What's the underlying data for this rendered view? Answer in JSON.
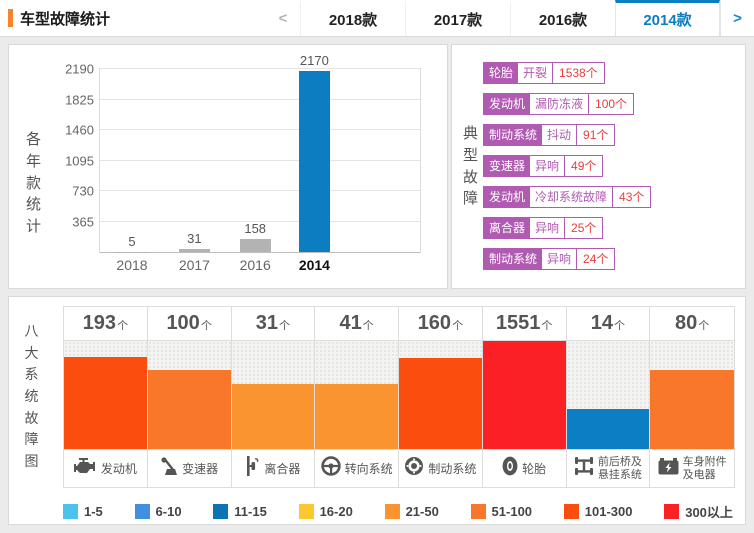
{
  "header": {
    "title": "车型故障统计",
    "prev_arrow": "<",
    "next_arrow": ">",
    "tabs": [
      {
        "label": "2018款",
        "active": false
      },
      {
        "label": "2017款",
        "active": false
      },
      {
        "label": "2016款",
        "active": false
      },
      {
        "label": "2014款",
        "active": true
      }
    ]
  },
  "colors": {
    "accent_orange": "#f5842d",
    "tab_active_blue": "#0d7dc1",
    "bar_blue": "#0c7dc0",
    "bar_gray": "#b3b3b3",
    "tag_purple": "#b15ab1",
    "count_red": "#e83e3e"
  },
  "yearly_panel": {
    "side_label": "各年款统计"
  },
  "typical_faults": {
    "side_label": "典型故障",
    "items": [
      {
        "system": "轮胎",
        "fault": "开裂",
        "count": "1538个"
      },
      {
        "system": "发动机",
        "fault": "漏防冻液",
        "count": "100个"
      },
      {
        "system": "制动系统",
        "fault": "抖动",
        "count": "91个"
      },
      {
        "system": "变速器",
        "fault": "异响",
        "count": "49个"
      },
      {
        "system": "发动机",
        "fault": "冷却系统故障",
        "count": "43个"
      },
      {
        "system": "离合器",
        "fault": "异响",
        "count": "25个"
      },
      {
        "system": "制动系统",
        "fault": "异响",
        "count": "24个"
      }
    ]
  },
  "systems_panel": {
    "side_label": "八大系统故障图"
  },
  "chart_data": [
    {
      "type": "bar",
      "title": "各年款统计",
      "categories": [
        "2018",
        "2017",
        "2016",
        "2014"
      ],
      "values": [
        5,
        31,
        158,
        2170
      ],
      "bar_colors": [
        "#b3b3b3",
        "#b3b3b3",
        "#b3b3b3",
        "#0c7dc0"
      ],
      "bar_centers_pct": [
        10,
        29.5,
        48.5,
        67
      ],
      "yticks": [
        2190,
        1825,
        1460,
        1095,
        730,
        365
      ],
      "ylim": [
        0,
        2190
      ],
      "grid": true,
      "highlight_category": "2014",
      "xlabel": "",
      "ylabel": "各年款统计"
    },
    {
      "type": "bar",
      "title": "八大系统故障图",
      "unit": "个",
      "categories": [
        "发动机",
        "变速器",
        "离合器",
        "转向系统",
        "制动系统",
        "轮胎",
        "前后桥及悬挂系统",
        "车身附件及电器"
      ],
      "label_lines": [
        [
          "发动机"
        ],
        [
          "变速器"
        ],
        [
          "离合器"
        ],
        [
          "转向系统"
        ],
        [
          "制动系统"
        ],
        [
          "轮胎"
        ],
        [
          "前后桥及",
          "悬挂系统"
        ],
        [
          "车身附件",
          "及电器"
        ]
      ],
      "values": [
        193,
        100,
        31,
        41,
        160,
        1551,
        14,
        80
      ],
      "height_pct": [
        85,
        73,
        60,
        60,
        84,
        100,
        37,
        73
      ],
      "bar_colors": [
        "#fb4e0e",
        "#f8772a",
        "#f9942e",
        "#f9942e",
        "#fb4e0e",
        "#fb2026",
        "#0b7ec4",
        "#f8772a"
      ],
      "icons": [
        "engine-icon",
        "gearshift-icon",
        "clutch-icon",
        "steering-icon",
        "brake-icon",
        "tire-icon",
        "axle-icon",
        "battery-icon"
      ]
    }
  ],
  "legend": {
    "items": [
      {
        "label": "1-5",
        "color": "#4fc1ef"
      },
      {
        "label": "6-10",
        "color": "#4090e2"
      },
      {
        "label": "11-15",
        "color": "#0d73b2"
      },
      {
        "label": "16-20",
        "color": "#fdc72f"
      },
      {
        "label": "21-50",
        "color": "#f9942e"
      },
      {
        "label": "51-100",
        "color": "#f8772a"
      },
      {
        "label": "101-300",
        "color": "#fb4e0e"
      },
      {
        "label": "300以上",
        "color": "#fb2026"
      }
    ]
  }
}
